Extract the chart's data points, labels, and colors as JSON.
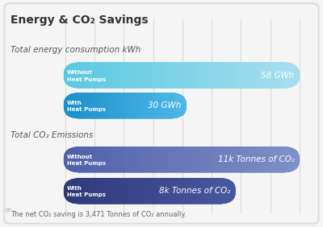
{
  "title": "Energy & CO₂ Savings",
  "background_color": "#f5f5f5",
  "section1_label": "Total energy consumption kWh",
  "section2_label": "Total CO₂ Emissions",
  "footer": "The net CO₂ saving is 3,471 Tonnes of CO₂ annually.",
  "bars": [
    {
      "label_line1": "Without",
      "label_line2": "Heat Pumps",
      "value": 58,
      "max_value": 58,
      "value_text": "58 GWh",
      "value_bold": "GWh",
      "color_left": "#5ac8e0",
      "color_right": "#a8dff0",
      "section": 0
    },
    {
      "label_line1": "With",
      "label_line2": "Heat Pumps",
      "value": 30,
      "max_value": 58,
      "value_text": "30 GWh",
      "value_bold": "GWh",
      "color_left": "#1a90c8",
      "color_right": "#50b8e8",
      "section": 0
    },
    {
      "label_line1": "Without",
      "label_line2": "Heat Pumps",
      "value": 11,
      "max_value": 11,
      "value_text": "11k Tonnes of CO₂",
      "value_bold": "CO₂",
      "color_left": "#5060a8",
      "color_right": "#8090c8",
      "section": 1
    },
    {
      "label_line1": "With",
      "label_line2": "Heat Pumps",
      "value": 8,
      "max_value": 11,
      "value_text": "8k Tonnes of CO₂",
      "value_bold": "CO₂",
      "color_left": "#303878",
      "color_right": "#4858a0",
      "section": 1
    }
  ],
  "grid_color": "#d8d8d8",
  "text_color": "#555555",
  "section_label_color": "#555555",
  "label_text_color": "#ffffff"
}
